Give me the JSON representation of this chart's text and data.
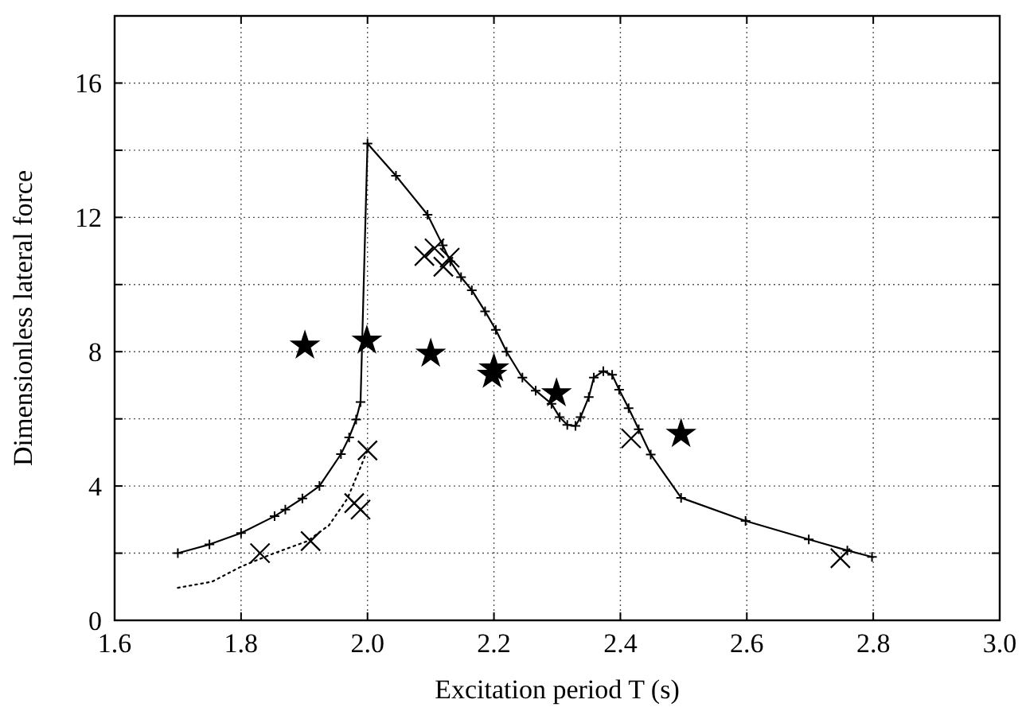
{
  "chart_data": {
    "type": "line",
    "xlabel": "Excitation period T (s)",
    "ylabel": "Dimensionless lateral force",
    "xlim": [
      1.6,
      3.0
    ],
    "xticks": [
      1.6,
      1.8,
      {
        "value": 2,
        "label": "2.0"
      },
      2.2,
      2.4,
      2.6,
      2.8,
      {
        "value": 3,
        "label": "3.0"
      }
    ],
    "ylim": [
      0,
      18
    ],
    "yticks": [
      0,
      {
        "value": 2,
        "label": null
      },
      4,
      {
        "value": 6,
        "label": null
      },
      8,
      {
        "value": 10,
        "label": null
      },
      12,
      {
        "value": 14,
        "label": null
      },
      16
    ],
    "grid": true,
    "series": [
      {
        "color": "#000000",
        "marker": "cross",
        "line_style": "solid",
        "x": [
          1.7,
          1.75,
          1.8,
          1.853,
          1.87,
          1.897,
          1.924,
          1.958,
          1.971,
          1.982,
          1.989,
          2.0,
          2.045,
          2.095,
          2.119,
          2.131,
          2.148,
          2.165,
          2.186,
          2.203,
          2.22,
          2.245,
          2.266,
          2.291,
          2.304,
          2.316,
          2.329,
          2.337,
          2.35,
          2.358,
          2.373,
          2.387,
          2.398,
          2.413,
          2.429,
          2.448,
          2.496,
          2.598,
          2.698,
          2.759,
          2.798
        ],
        "values": [
          2.0,
          2.26,
          2.6,
          3.1,
          3.3,
          3.63,
          4.0,
          4.95,
          5.45,
          5.98,
          6.5,
          14.2,
          13.24,
          12.08,
          11.17,
          10.69,
          10.22,
          9.83,
          9.2,
          8.65,
          8.0,
          7.23,
          6.84,
          6.45,
          6.05,
          5.82,
          5.79,
          6.05,
          6.65,
          7.23,
          7.42,
          7.31,
          6.87,
          6.32,
          5.69,
          4.94,
          3.65,
          2.96,
          2.41,
          2.08,
          1.89
        ]
      },
      {
        "color": "#000000",
        "marker": "none",
        "line_style": "dotted",
        "x": [
          1.7,
          1.754,
          1.8,
          1.847,
          1.905,
          1.939,
          1.968,
          1.989,
          1.999
        ],
        "values": [
          0.97,
          1.15,
          1.6,
          1.96,
          2.36,
          2.83,
          3.62,
          4.56,
          5.03
        ]
      },
      {
        "type": "scatter",
        "color": "#000000",
        "marker": "cross",
        "x": [
          1.83,
          1.91,
          1.979,
          1.989,
          2.0,
          2.09,
          2.106,
          2.12,
          2.13,
          2.417,
          2.748
        ],
        "values": [
          2.0,
          2.36,
          3.49,
          3.3,
          5.06,
          10.85,
          11.08,
          10.53,
          10.8,
          5.42,
          1.85
        ]
      },
      {
        "type": "scatter",
        "color": "#000000",
        "marker": "star",
        "x": [
          1.901,
          1.999,
          2.1,
          2.197,
          2.2,
          2.299,
          2.496
        ],
        "values": [
          8.18,
          8.33,
          7.94,
          7.31,
          7.5,
          6.76,
          5.55
        ]
      }
    ]
  }
}
